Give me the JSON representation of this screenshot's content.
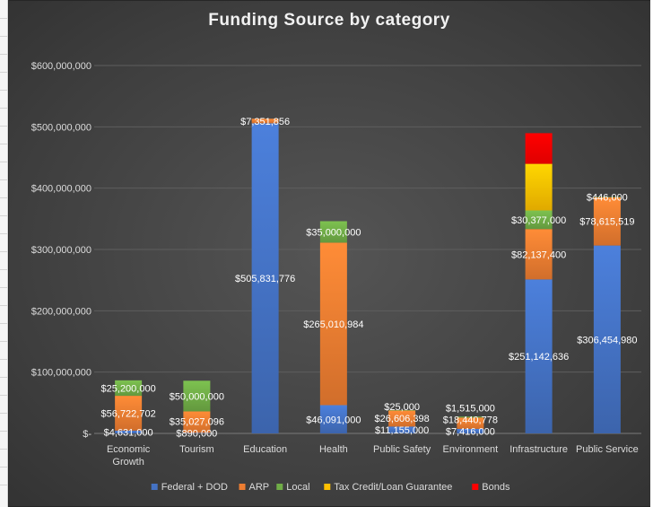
{
  "chart_data": {
    "type": "bar",
    "stacked": true,
    "title": "Funding Source by category",
    "categories": [
      [
        "Economic",
        "Growth"
      ],
      [
        "Tourism"
      ],
      [
        "Education"
      ],
      [
        "Health"
      ],
      [
        "Public Safety"
      ],
      [
        "Environment"
      ],
      [
        "Infrastructure"
      ],
      [
        "Public Service"
      ]
    ],
    "series": [
      {
        "name": "Federal + DOD",
        "color": "#4472C4",
        "values": [
          4631000,
          890000,
          505831776,
          46091000,
          11155000,
          7416000,
          251142636,
          306454980
        ]
      },
      {
        "name": "ARP",
        "color": "#ED7D31",
        "values": [
          56722702,
          35027096,
          7351856,
          265010984,
          26606398,
          18440778,
          82137400,
          78615519
        ]
      },
      {
        "name": "Local",
        "color": "#70AD47",
        "values": [
          25200000,
          50000000,
          0,
          35000000,
          25000,
          1515000,
          30377000,
          446000
        ]
      },
      {
        "name": "Tax Credit/Loan Guarantee",
        "color": "#FFC000",
        "values": [
          0,
          0,
          0,
          0,
          0,
          0,
          76000000,
          0
        ]
      },
      {
        "name": "Bonds",
        "color": "#FF0000",
        "values": [
          0,
          0,
          0,
          0,
          0,
          0,
          50000000,
          0
        ]
      }
    ],
    "data_labels": [
      [
        "$4,631,000",
        "$890,000",
        "$505,831,776",
        "$46,091,000",
        "$11,155,000",
        "$7,416,000",
        "$251,142,636",
        "$306,454,980"
      ],
      [
        "$56,722,702",
        "$35,027,096",
        "$7,351,856",
        "$265,010,984",
        "$26,606,398",
        "$18,440,778",
        "$82,137,400",
        "$78,615,519"
      ],
      [
        "$25,200,000",
        "$50,000,000",
        "",
        "$35,000,000",
        "$25,000",
        "$1,515,000",
        "$30,377,000",
        "$446,000"
      ],
      [
        "",
        "",
        "",
        "",
        "",
        "",
        "",
        ""
      ],
      [
        "",
        "",
        "",
        "",
        "",
        "",
        "",
        ""
      ]
    ],
    "ylim": [
      0,
      600000000
    ],
    "yticks": [
      0,
      100000000,
      200000000,
      300000000,
      400000000,
      500000000,
      600000000
    ],
    "ytick_labels": [
      "$-",
      "$100,000,000",
      "$200,000,000",
      "$300,000,000",
      "$400,000,000",
      "$500,000,000",
      "$600,000,000"
    ],
    "grid": true,
    "legend_position": "bottom"
  }
}
